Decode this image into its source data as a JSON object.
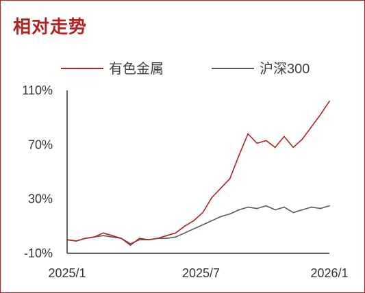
{
  "chart_data": {
    "type": "line",
    "title": "相对走势",
    "xlabel": "",
    "ylabel": "",
    "x_tick_labels": [
      "2025/1",
      "2025/7",
      "2026/1"
    ],
    "x_range": [
      "2025-01",
      "2026-01"
    ],
    "y_tick_labels": [
      "110%",
      "70%",
      "30%",
      "-10%"
    ],
    "y_ticks": [
      110,
      70,
      30,
      -10
    ],
    "ylim": [
      -10,
      110
    ],
    "grid": false,
    "legend_position": "top",
    "x": [
      "2025-01",
      "2025-01",
      "2025-02",
      "2025-02",
      "2025-03",
      "2025-03",
      "2025-04",
      "2025-04",
      "2025-04",
      "2025-05",
      "2025-05",
      "2025-06",
      "2025-06",
      "2025-07",
      "2025-07",
      "2025-08",
      "2025-08",
      "2025-08",
      "2025-09",
      "2025-09",
      "2025-09",
      "2025-10",
      "2025-10",
      "2025-10",
      "2025-11",
      "2025-11",
      "2025-12",
      "2025-12",
      "2025-12",
      "2026-01"
    ],
    "series": [
      {
        "name": "有色金属",
        "color": "#b22222",
        "values": [
          0,
          -1,
          1,
          2,
          5,
          3,
          1,
          -4,
          1,
          0,
          1,
          3,
          5,
          10,
          14,
          20,
          31,
          38,
          45,
          62,
          78,
          71,
          73,
          68,
          76,
          68,
          74,
          83,
          92,
          102
        ]
      },
      {
        "name": "沪深300",
        "color": "#595959",
        "values": [
          0,
          -1,
          1,
          2,
          3,
          2,
          1,
          -3,
          0,
          0,
          1,
          1,
          2,
          5,
          8,
          11,
          14,
          17,
          19,
          22,
          24,
          23,
          25,
          22,
          24,
          20,
          22,
          24,
          23,
          25
        ]
      }
    ]
  }
}
